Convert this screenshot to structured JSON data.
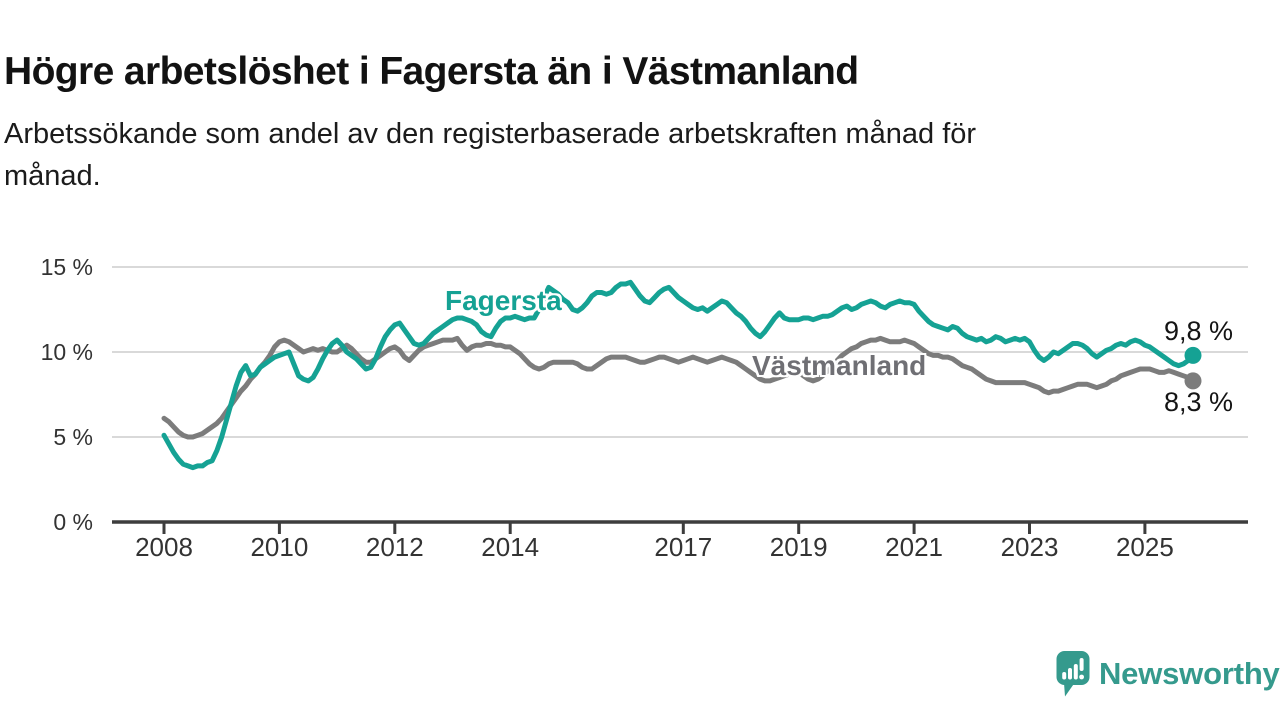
{
  "header": {
    "title": "Högre arbetslöshet i Fagersta än i Västmanland",
    "subtitle": "Arbetssökande som andel av den registerbaserade arbetskraften månad för månad.",
    "subtitle_lines": [
      "Arbetssökande som andel av den registerbaserade arbetskraften månad för",
      "månad."
    ]
  },
  "chart_data": {
    "type": "line",
    "title": "Högre arbetslöshet i Fagersta än i Västmanland",
    "subtitle": "Arbetssökande som andel av den registerbaserade arbetskraften månad för månad.",
    "frequency": "monthly",
    "x_start": "2008-01",
    "x_end": "2025-11",
    "ylim": [
      0,
      15
    ],
    "grid": true,
    "grid_color": "#d9d9d9",
    "axis_color": "#3d3d3d",
    "tick_label_color": "#333333",
    "legend_position": "inline-labels",
    "yticks": [
      {
        "value": 0,
        "label": "0 %"
      },
      {
        "value": 5,
        "label": "5 %"
      },
      {
        "value": 10,
        "label": "10 %"
      },
      {
        "value": 15,
        "label": "15 %"
      }
    ],
    "xticks": [
      {
        "year": 2008,
        "label": "2008"
      },
      {
        "year": 2010,
        "label": "2010"
      },
      {
        "year": 2012,
        "label": "2012"
      },
      {
        "year": 2014,
        "label": "2014"
      },
      {
        "year": 2017,
        "label": "2017"
      },
      {
        "year": 2019,
        "label": "2019"
      },
      {
        "year": 2021,
        "label": "2021"
      },
      {
        "year": 2023,
        "label": "2023"
      },
      {
        "year": 2025,
        "label": "2025"
      }
    ],
    "series": [
      {
        "name": "Fagersta",
        "color": "#15a294",
        "label_color": "#15a294",
        "end_label": "9,8 %",
        "end_value": 9.8,
        "values": [
          5.1,
          4.6,
          4.1,
          3.7,
          3.4,
          3.3,
          3.2,
          3.3,
          3.3,
          3.5,
          3.6,
          4.2,
          5.0,
          6.0,
          7.0,
          8.0,
          8.8,
          9.2,
          8.6,
          8.7,
          9.1,
          9.3,
          9.5,
          9.7,
          9.8,
          9.9,
          10.0,
          9.3,
          8.6,
          8.4,
          8.3,
          8.5,
          9.0,
          9.6,
          10.1,
          10.5,
          10.7,
          10.4,
          10.0,
          9.8,
          9.6,
          9.3,
          9.0,
          9.1,
          9.6,
          10.3,
          10.9,
          11.3,
          11.6,
          11.7,
          11.3,
          10.9,
          10.5,
          10.4,
          10.5,
          10.8,
          11.1,
          11.3,
          11.5,
          11.7,
          11.9,
          12.0,
          12.0,
          11.9,
          11.8,
          11.6,
          11.2,
          11.0,
          10.9,
          11.4,
          11.8,
          12.0,
          12.0,
          12.1,
          12.0,
          11.9,
          12.0,
          12.0,
          12.5,
          13.2,
          13.8,
          13.6,
          13.4,
          13.1,
          12.9,
          12.5,
          12.4,
          12.6,
          12.9,
          13.3,
          13.5,
          13.5,
          13.4,
          13.5,
          13.8,
          14.0,
          14.0,
          14.1,
          13.7,
          13.3,
          13.0,
          12.9,
          13.2,
          13.5,
          13.7,
          13.8,
          13.5,
          13.2,
          13.0,
          12.8,
          12.6,
          12.5,
          12.6,
          12.4,
          12.6,
          12.8,
          13.0,
          12.9,
          12.6,
          12.3,
          12.1,
          11.8,
          11.4,
          11.1,
          10.9,
          11.2,
          11.6,
          12.0,
          12.3,
          12.0,
          11.9,
          11.9,
          11.9,
          12.0,
          12.0,
          11.9,
          12.0,
          12.1,
          12.1,
          12.2,
          12.4,
          12.6,
          12.7,
          12.5,
          12.6,
          12.8,
          12.9,
          13.0,
          12.9,
          12.7,
          12.6,
          12.8,
          12.9,
          13.0,
          12.9,
          12.9,
          12.8,
          12.4,
          12.1,
          11.8,
          11.6,
          11.5,
          11.4,
          11.3,
          11.5,
          11.4,
          11.1,
          10.9,
          10.8,
          10.7,
          10.8,
          10.6,
          10.7,
          10.9,
          10.8,
          10.6,
          10.7,
          10.8,
          10.7,
          10.8,
          10.6,
          10.1,
          9.7,
          9.5,
          9.7,
          10.0,
          9.9,
          10.1,
          10.3,
          10.5,
          10.5,
          10.4,
          10.2,
          9.9,
          9.7,
          9.9,
          10.1,
          10.2,
          10.4,
          10.5,
          10.4,
          10.6,
          10.7,
          10.6,
          10.4,
          10.3,
          10.1,
          9.9,
          9.7,
          9.5,
          9.3,
          9.2,
          9.3,
          9.5,
          9.8
        ]
      },
      {
        "name": "Västmanland",
        "color": "#7c7c7c",
        "label_color": "#6f6f74",
        "end_label": "8,3 %",
        "end_value": 8.3,
        "values": [
          6.1,
          5.9,
          5.6,
          5.3,
          5.1,
          5.0,
          5.0,
          5.1,
          5.2,
          5.4,
          5.6,
          5.8,
          6.1,
          6.5,
          6.9,
          7.3,
          7.7,
          8.0,
          8.4,
          8.7,
          9.1,
          9.4,
          9.8,
          10.3,
          10.6,
          10.7,
          10.6,
          10.4,
          10.2,
          10.0,
          10.1,
          10.2,
          10.1,
          10.2,
          10.1,
          10.0,
          10.0,
          10.2,
          10.4,
          10.2,
          9.9,
          9.6,
          9.4,
          9.4,
          9.6,
          9.8,
          10.0,
          10.2,
          10.3,
          10.1,
          9.7,
          9.5,
          9.8,
          10.1,
          10.3,
          10.4,
          10.5,
          10.6,
          10.7,
          10.7,
          10.7,
          10.8,
          10.4,
          10.1,
          10.3,
          10.4,
          10.4,
          10.5,
          10.5,
          10.4,
          10.4,
          10.3,
          10.3,
          10.1,
          9.9,
          9.6,
          9.3,
          9.1,
          9.0,
          9.1,
          9.3,
          9.4,
          9.4,
          9.4,
          9.4,
          9.4,
          9.3,
          9.1,
          9.0,
          9.0,
          9.2,
          9.4,
          9.6,
          9.7,
          9.7,
          9.7,
          9.7,
          9.6,
          9.5,
          9.4,
          9.4,
          9.5,
          9.6,
          9.7,
          9.7,
          9.6,
          9.5,
          9.4,
          9.5,
          9.6,
          9.7,
          9.6,
          9.5,
          9.4,
          9.5,
          9.6,
          9.7,
          9.6,
          9.5,
          9.4,
          9.2,
          9.0,
          8.8,
          8.6,
          8.4,
          8.3,
          8.3,
          8.4,
          8.5,
          8.6,
          8.7,
          8.8,
          8.8,
          8.6,
          8.4,
          8.3,
          8.4,
          8.6,
          8.9,
          9.2,
          9.5,
          9.8,
          10.0,
          10.2,
          10.3,
          10.5,
          10.6,
          10.7,
          10.7,
          10.8,
          10.7,
          10.6,
          10.6,
          10.6,
          10.7,
          10.6,
          10.5,
          10.3,
          10.1,
          9.9,
          9.8,
          9.8,
          9.7,
          9.7,
          9.6,
          9.4,
          9.2,
          9.1,
          9.0,
          8.8,
          8.6,
          8.4,
          8.3,
          8.2,
          8.2,
          8.2,
          8.2,
          8.2,
          8.2,
          8.2,
          8.1,
          8.0,
          7.9,
          7.7,
          7.6,
          7.7,
          7.7,
          7.8,
          7.9,
          8.0,
          8.1,
          8.1,
          8.1,
          8.0,
          7.9,
          8.0,
          8.1,
          8.3,
          8.4,
          8.6,
          8.7,
          8.8,
          8.9,
          9.0,
          9.0,
          9.0,
          8.9,
          8.8,
          8.8,
          8.9,
          8.8,
          8.7,
          8.6,
          8.5,
          8.3
        ]
      }
    ]
  },
  "footer": {
    "brand": "Newsworthy",
    "brand_color": "#359a8d",
    "logo_icon": "speech-bubble-bar-chart-icon"
  }
}
